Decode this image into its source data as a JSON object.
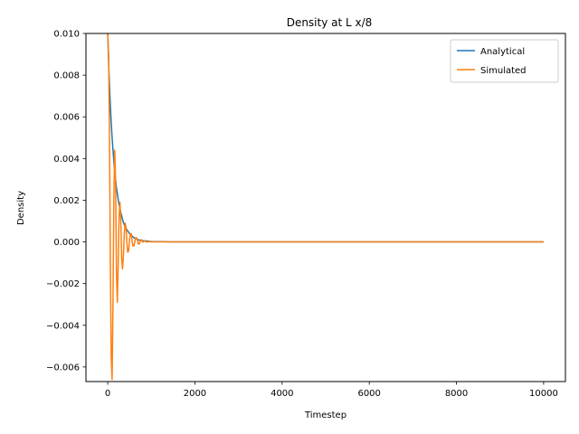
{
  "chart_data": {
    "type": "line",
    "title": "Density at L x/8",
    "xlabel": "Timestep",
    "ylabel": "Density",
    "xlim": [
      -500,
      10500
    ],
    "ylim": [
      -0.0067,
      0.01
    ],
    "xticks": [
      0,
      2000,
      4000,
      6000,
      8000,
      10000
    ],
    "xtick_labels": [
      "0",
      "2000",
      "4000",
      "6000",
      "8000",
      "10000"
    ],
    "yticks": [
      -0.006,
      -0.004,
      -0.002,
      0.0,
      0.002,
      0.004,
      0.006,
      0.008,
      0.01
    ],
    "ytick_labels": [
      "−0.006",
      "−0.004",
      "−0.002",
      "0.000",
      "0.002",
      "0.004",
      "0.006",
      "0.008",
      "0.010"
    ],
    "grid": false,
    "legend_position": "top-right",
    "series": [
      {
        "name": "Analytical",
        "color": "#1f77b4",
        "x": [
          0,
          25,
          50,
          75,
          100,
          150,
          200,
          250,
          300,
          350,
          400,
          500,
          600,
          700,
          800,
          1000,
          1200,
          1500,
          2000,
          3000,
          5000,
          7500,
          10000
        ],
        "y": [
          0.01,
          0.0083,
          0.007,
          0.0059,
          0.005,
          0.0036,
          0.0026,
          0.0019,
          0.0014,
          0.001,
          0.0007,
          0.0004,
          0.0002,
          0.0001,
          6e-05,
          2e-05,
          1e-05,
          0.0,
          0.0,
          0.0,
          0.0,
          0.0,
          0.0
        ]
      },
      {
        "name": "Simulated",
        "color": "#ff7f0e",
        "x": [
          0,
          20,
          40,
          60,
          80,
          100,
          120,
          140,
          160,
          180,
          200,
          220,
          240,
          260,
          280,
          300,
          320,
          340,
          360,
          380,
          400,
          420,
          440,
          460,
          480,
          500,
          520,
          540,
          560,
          580,
          600,
          620,
          640,
          660,
          680,
          700,
          720,
          740,
          760,
          780,
          800,
          820,
          840,
          860,
          880,
          900,
          950,
          1000,
          1100,
          1200,
          1500,
          2000,
          3000,
          5000,
          7500,
          10000
        ],
        "y": [
          0.01,
          0.009,
          0.005,
          -0.001,
          -0.0055,
          -0.0066,
          -0.003,
          0.002,
          0.0044,
          0.003,
          -0.0015,
          -0.0029,
          -0.001,
          0.0012,
          0.0019,
          0.001,
          -0.0008,
          -0.0013,
          -0.0006,
          0.0004,
          0.0009,
          0.0007,
          -0.0001,
          -0.0005,
          -0.0004,
          0.0001,
          0.0004,
          0.0004,
          0.0,
          -0.0002,
          -0.0002,
          0.0,
          0.0002,
          0.0002,
          0.0001,
          -0.0001,
          -0.0001,
          0.0,
          0.0001,
          0.0001,
          0.0,
          0.0,
          5e-05,
          4e-05,
          0.0,
          0.0,
          2e-05,
          0.0,
          0.0,
          0.0,
          0.0,
          0.0,
          0.0,
          0.0,
          0.0,
          0.0
        ]
      }
    ]
  }
}
